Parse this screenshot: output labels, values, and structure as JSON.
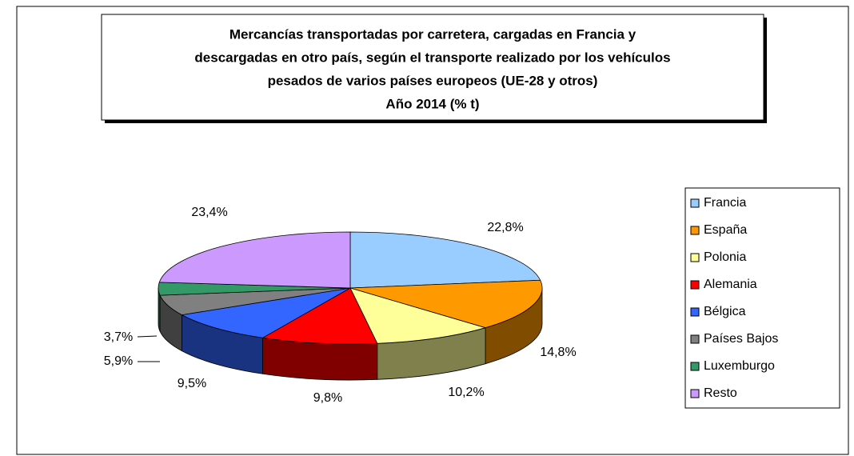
{
  "chart_data": {
    "type": "pie3d",
    "title": [
      "Mercancías transportadas por carretera, cargadas en Francia y",
      "descargadas en otro país, según el transporte realizado por los vehículos",
      "pesados de varios países europeos (UE-28 y otros)",
      "Año 2014  (% t)"
    ],
    "categories": [
      "Francia",
      "España",
      "Polonia",
      "Alemania",
      "Bélgica",
      "Países Bajos",
      "Luxemburgo",
      "Resto"
    ],
    "values": [
      22.8,
      14.8,
      10.2,
      9.8,
      9.5,
      5.9,
      3.7,
      23.4
    ],
    "value_labels": [
      "22,8%",
      "14,8%",
      "10,2%",
      "9,8%",
      "9,5%",
      "5,9%",
      "3,7%",
      "23,4%"
    ],
    "colors": [
      "#99ccff",
      "#ff9900",
      "#ffff99",
      "#ff0000",
      "#3366ff",
      "#808080",
      "#339966",
      "#cc99ff"
    ],
    "legend": "right"
  }
}
